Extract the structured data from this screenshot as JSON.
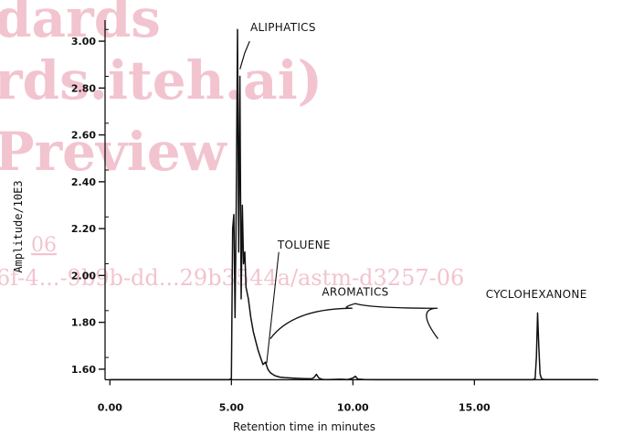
{
  "chart_data": {
    "type": "line",
    "xlabel": "Retention time in minutes",
    "ylabel": "Amplitude/10E3",
    "xlim": [
      -0.2,
      20.1
    ],
    "ylim": [
      1.545,
      3.09
    ],
    "x_ticks": [
      0,
      5,
      10,
      15
    ],
    "x_tick_labels": [
      "0.00",
      "5.00",
      "10.00",
      "15.00"
    ],
    "y_ticks": [
      1.6,
      1.8,
      2.0,
      2.2,
      2.4,
      2.6,
      2.8,
      3.0
    ],
    "y_tick_labels": [
      "1.60",
      "1.80",
      "2.00",
      "2.20",
      "2.40",
      "2.60",
      "2.80",
      "3.00"
    ],
    "baseline": 1.555,
    "series": [
      {
        "x": [
          0.0,
          4.9,
          5.0,
          5.05,
          5.1,
          5.15,
          5.2,
          5.25,
          5.3,
          5.35,
          5.4,
          5.45,
          5.5,
          5.55,
          5.6,
          5.7,
          5.8,
          5.9,
          6.0,
          6.1,
          6.2,
          6.3,
          6.4,
          6.5,
          6.6,
          6.7,
          6.8,
          7.0,
          7.2,
          7.5,
          8.0,
          8.3,
          8.4,
          8.5,
          8.6,
          8.7,
          8.8,
          9.0,
          9.5,
          9.8,
          10.0,
          10.1,
          10.2,
          10.5,
          11.0,
          12.0,
          13.0,
          14.0,
          15.0,
          16.0,
          17.0,
          17.4,
          17.5,
          17.55,
          17.6,
          17.65,
          17.7,
          17.75,
          17.8,
          17.9,
          18.5,
          19.0,
          20.0
        ],
        "y": [
          1.555,
          1.555,
          1.56,
          2.2,
          2.26,
          1.82,
          2.3,
          3.05,
          2.1,
          2.85,
          1.9,
          2.3,
          2.05,
          2.1,
          1.95,
          1.9,
          1.82,
          1.76,
          1.72,
          1.68,
          1.65,
          1.62,
          1.63,
          1.6,
          1.585,
          1.578,
          1.572,
          1.566,
          1.564,
          1.562,
          1.56,
          1.559,
          1.565,
          1.578,
          1.562,
          1.558,
          1.556,
          1.556,
          1.557,
          1.556,
          1.562,
          1.57,
          1.558,
          1.556,
          1.555,
          1.555,
          1.555,
          1.555,
          1.555,
          1.555,
          1.555,
          1.555,
          1.56,
          1.65,
          1.84,
          1.7,
          1.58,
          1.562,
          1.557,
          1.556,
          1.556,
          1.556,
          1.556
        ]
      }
    ],
    "annotations": [
      {
        "text": "ALIPHATICS",
        "x": 5.7,
        "y": 3.02
      },
      {
        "text": "TOLUENE",
        "x": 6.9,
        "y": 2.13
      },
      {
        "text": "AROMATICS",
        "x": 10.1,
        "y": 1.93
      },
      {
        "text": "CYCLOHEXANONE",
        "x": 17.55,
        "y": 1.92
      }
    ]
  },
  "watermark": {
    "lines": [
      "dards",
      "rds.iteh.ai)",
      "Preview",
      "06",
      "6f-4...-9b9b-dd...29b3544a/astm-d3257-06"
    ]
  }
}
